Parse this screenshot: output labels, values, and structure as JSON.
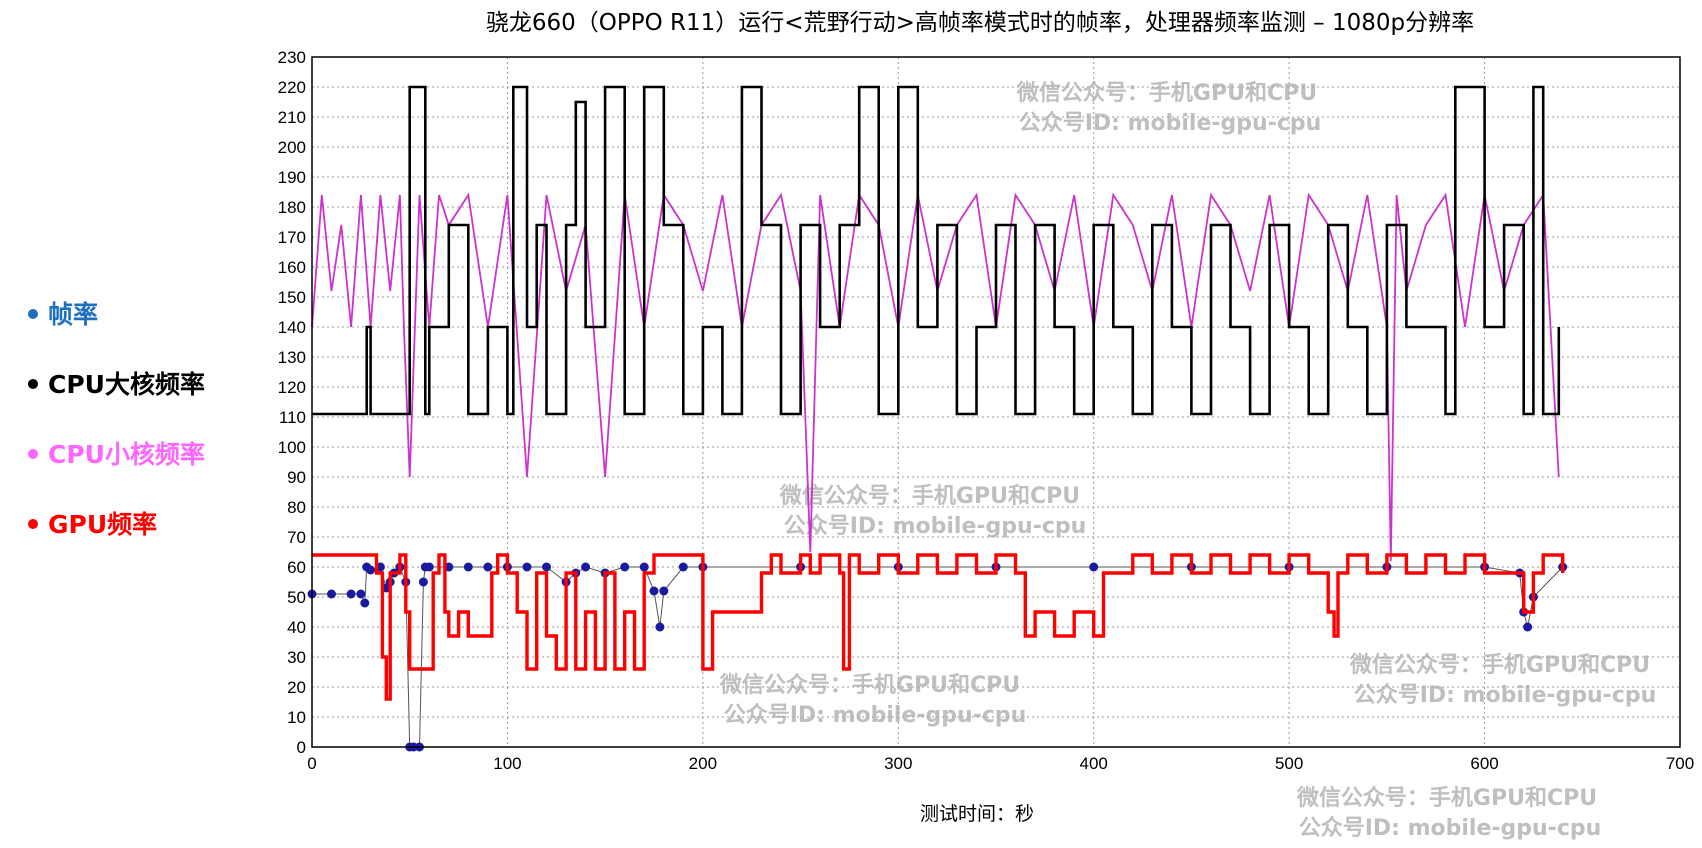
{
  "chart_data": {
    "type": "line",
    "title": "骁龙660（OPPO R11）运行<荒野行动>高帧率模式时的帧率，处理器频率监测 – 1080p分辨率",
    "xlabel": "测试时间：秒",
    "ylabel": "",
    "xlim": [
      0,
      700
    ],
    "ylim": [
      0,
      230
    ],
    "x_ticks": [
      0,
      100,
      200,
      300,
      400,
      500,
      600,
      700
    ],
    "y_ticks": [
      0,
      10,
      20,
      30,
      40,
      50,
      60,
      70,
      80,
      90,
      100,
      110,
      120,
      130,
      140,
      150,
      160,
      170,
      180,
      190,
      200,
      210,
      220,
      230
    ],
    "grid": true,
    "legend_position": "left",
    "series": [
      {
        "name": "帧率",
        "color": "#1f6fbf",
        "marker_color": "#1a1aa0",
        "style": "markers",
        "x": [
          0,
          10,
          20,
          25,
          27,
          28,
          30,
          35,
          38,
          40,
          42,
          45,
          48,
          50,
          52,
          55,
          57,
          58,
          60,
          70,
          80,
          90,
          100,
          110,
          120,
          130,
          135,
          140,
          150,
          160,
          170,
          175,
          178,
          180,
          190,
          200,
          250,
          300,
          350,
          400,
          450,
          500,
          550,
          600,
          618,
          620,
          622,
          625,
          640
        ],
        "y": [
          51,
          51,
          51,
          51,
          48,
          60,
          59,
          60,
          53,
          55,
          58,
          60,
          55,
          0,
          0,
          0,
          55,
          60,
          60,
          60,
          60,
          60,
          60,
          60,
          60,
          55,
          58,
          60,
          58,
          60,
          60,
          52,
          40,
          52,
          60,
          60,
          60,
          60,
          60,
          60,
          60,
          60,
          60,
          60,
          58,
          45,
          40,
          50,
          60
        ]
      },
      {
        "name": "CPU大核频率",
        "color": "#000000",
        "style": "line",
        "x": [
          0,
          27,
          28,
          30,
          48,
          50,
          56,
          58,
          60,
          70,
          80,
          90,
          100,
          103,
          105,
          110,
          115,
          120,
          130,
          135,
          140,
          150,
          160,
          170,
          180,
          190,
          200,
          210,
          220,
          230,
          240,
          250,
          260,
          270,
          280,
          290,
          300,
          305,
          310,
          320,
          330,
          340,
          350,
          360,
          370,
          380,
          390,
          400,
          410,
          420,
          430,
          440,
          450,
          460,
          470,
          480,
          490,
          500,
          510,
          520,
          530,
          540,
          550,
          560,
          570,
          580,
          585,
          590,
          600,
          610,
          620,
          625,
          630,
          638
        ],
        "y": [
          111,
          111,
          140,
          111,
          111,
          220,
          220,
          111,
          140,
          174,
          111,
          140,
          111,
          220,
          220,
          140,
          174,
          111,
          174,
          215,
          140,
          220,
          111,
          220,
          174,
          111,
          140,
          111,
          220,
          174,
          111,
          174,
          140,
          174,
          220,
          111,
          220,
          220,
          140,
          174,
          111,
          140,
          174,
          111,
          174,
          140,
          111,
          174,
          140,
          111,
          174,
          140,
          111,
          174,
          140,
          111,
          174,
          140,
          111,
          174,
          140,
          111,
          174,
          140,
          140,
          111,
          220,
          220,
          140,
          174,
          111,
          220,
          111,
          140
        ]
      },
      {
        "name": "CPU小核频率",
        "color": "#cc33cc",
        "style": "line",
        "x": [
          0,
          5,
          10,
          15,
          20,
          25,
          30,
          35,
          40,
          45,
          47,
          50,
          55,
          60,
          65,
          70,
          80,
          90,
          100,
          110,
          120,
          130,
          140,
          150,
          160,
          170,
          180,
          190,
          200,
          210,
          220,
          230,
          240,
          250,
          255,
          260,
          270,
          280,
          290,
          300,
          310,
          320,
          330,
          340,
          350,
          360,
          370,
          380,
          390,
          400,
          410,
          420,
          430,
          440,
          450,
          460,
          470,
          480,
          490,
          500,
          510,
          520,
          530,
          540,
          550,
          552,
          555,
          560,
          570,
          580,
          590,
          600,
          610,
          620,
          630,
          638
        ],
        "y": [
          140,
          184,
          152,
          174,
          140,
          184,
          140,
          184,
          152,
          184,
          140,
          90,
          184,
          140,
          184,
          174,
          184,
          140,
          184,
          90,
          184,
          152,
          174,
          90,
          184,
          140,
          184,
          174,
          152,
          184,
          140,
          174,
          184,
          152,
          65,
          184,
          140,
          184,
          174,
          140,
          184,
          152,
          174,
          184,
          140,
          184,
          174,
          152,
          184,
          140,
          184,
          174,
          152,
          184,
          140,
          184,
          174,
          152,
          184,
          140,
          184,
          174,
          152,
          184,
          140,
          62,
          184,
          152,
          174,
          184,
          140,
          184,
          152,
          174,
          184,
          90
        ]
      },
      {
        "name": "GPU频率",
        "color": "#ff0000",
        "style": "line",
        "x": [
          0,
          30,
          33,
          36,
          38,
          40,
          45,
          48,
          50,
          55,
          60,
          62,
          65,
          68,
          70,
          75,
          80,
          90,
          92,
          95,
          100,
          105,
          110,
          115,
          120,
          125,
          130,
          135,
          140,
          145,
          150,
          155,
          160,
          165,
          170,
          175,
          180,
          190,
          198,
          200,
          205,
          210,
          220,
          230,
          235,
          240,
          250,
          255,
          260,
          270,
          272,
          275,
          280,
          290,
          300,
          310,
          320,
          330,
          340,
          350,
          360,
          365,
          370,
          380,
          390,
          400,
          405,
          410,
          420,
          430,
          440,
          450,
          460,
          470,
          480,
          490,
          500,
          510,
          520,
          523,
          525,
          530,
          540,
          550,
          560,
          570,
          580,
          590,
          600,
          610,
          620,
          625,
          630,
          640
        ],
        "y": [
          64,
          64,
          58,
          30,
          16,
          58,
          64,
          45,
          26,
          26,
          26,
          58,
          64,
          45,
          37,
          45,
          37,
          37,
          58,
          64,
          58,
          45,
          26,
          58,
          37,
          26,
          58,
          26,
          45,
          26,
          58,
          26,
          45,
          26,
          58,
          64,
          64,
          64,
          64,
          26,
          45,
          45,
          45,
          58,
          64,
          58,
          64,
          58,
          64,
          58,
          26,
          64,
          58,
          64,
          58,
          64,
          58,
          64,
          58,
          64,
          58,
          37,
          45,
          37,
          45,
          37,
          58,
          58,
          64,
          58,
          64,
          58,
          64,
          58,
          64,
          58,
          64,
          58,
          45,
          37,
          58,
          64,
          58,
          64,
          58,
          64,
          58,
          64,
          58,
          58,
          45,
          58,
          64,
          58
        ]
      }
    ]
  },
  "legend": [
    {
      "label": "帧率",
      "color": "#1f6fbf"
    },
    {
      "label": "CPU大核频率",
      "color": "#000000"
    },
    {
      "label": "CPU小核频率",
      "color": "#ff66ff"
    },
    {
      "label": "GPU频率",
      "color": "#ff0000"
    }
  ],
  "watermarks": [
    {
      "line1": "微信公众号：手机GPU和CPU",
      "line2": "公众号ID: mobile-gpu-cpu"
    },
    {
      "line1": "微信公众号：手机GPU和CPU",
      "line2": "公众号ID: mobile-gpu-cpu"
    },
    {
      "line1": "微信公众号：手机GPU和CPU",
      "line2": "公众号ID: mobile-gpu-cpu"
    },
    {
      "line1": "微信公众号：手机GPU和CPU",
      "line2": "公众号ID: mobile-gpu-cpu"
    },
    {
      "line1": "微信公众号：手机GPU和CPU",
      "line2": "公众号ID: mobile-gpu-cpu"
    }
  ]
}
